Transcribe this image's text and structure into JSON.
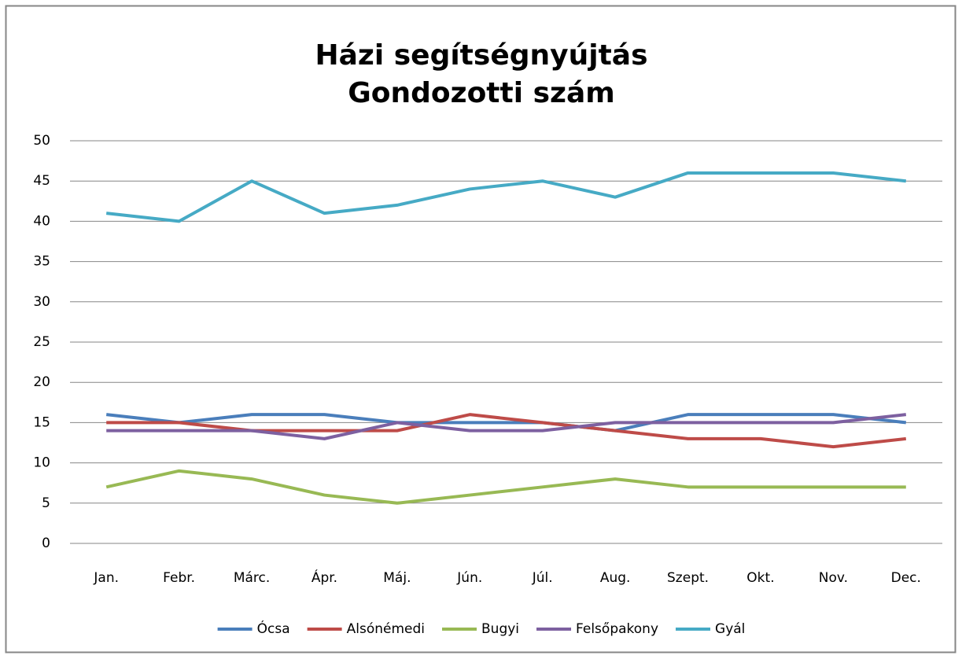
{
  "chart_data": {
    "type": "line",
    "title": [
      "Házi segítségnyújtás",
      "Gondozotti szám"
    ],
    "categories": [
      "Jan.",
      "Febr.",
      "Márc.",
      "Ápr.",
      "Máj.",
      "Jún.",
      "Júl.",
      "Aug.",
      "Szept.",
      "Okt.",
      "Nov.",
      "Dec."
    ],
    "series": [
      {
        "name": "Ócsa",
        "color": "#4a7ebb",
        "values": [
          16,
          15,
          16,
          16,
          15,
          15,
          15,
          14,
          16,
          16,
          16,
          15
        ]
      },
      {
        "name": "Alsónémedi",
        "color": "#be4b48",
        "values": [
          15,
          15,
          14,
          14,
          14,
          16,
          15,
          14,
          13,
          13,
          12,
          13
        ]
      },
      {
        "name": "Bugyi",
        "color": "#98b954",
        "values": [
          7,
          9,
          8,
          6,
          5,
          6,
          7,
          8,
          7,
          7,
          7,
          7
        ]
      },
      {
        "name": "Felsőpakony",
        "color": "#7d60a0",
        "values": [
          14,
          14,
          14,
          13,
          15,
          14,
          14,
          15,
          15,
          15,
          15,
          16
        ]
      },
      {
        "name": "Gyál",
        "color": "#46aac5",
        "values": [
          41,
          40,
          45,
          41,
          42,
          44,
          45,
          43,
          46,
          46,
          46,
          45
        ]
      }
    ],
    "ylim": [
      0,
      50
    ],
    "yticks": [
      0,
      5,
      10,
      15,
      20,
      25,
      30,
      35,
      40,
      45,
      50
    ],
    "grid": true,
    "legend": "bottom"
  }
}
